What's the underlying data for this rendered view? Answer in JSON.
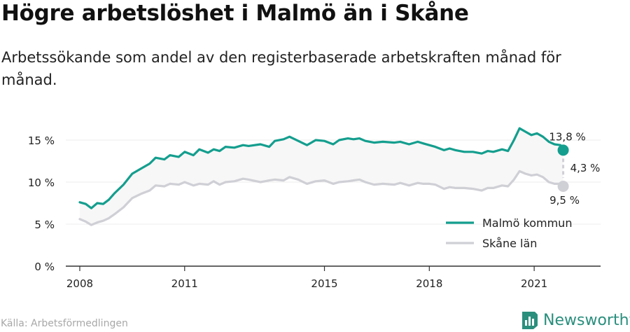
{
  "title": "Högre arbetslöshet i Malmö än i Skåne",
  "subtitle": "Arbetssökande som andel av den registerbaserade arbetskraften månad för månad.",
  "source": "Källa: Arbetsförmedlingen",
  "brand": "Newsworthy",
  "colors": {
    "malmo": "#149e8e",
    "skane": "#cfcfd6",
    "band": "#f7f7f7",
    "axis": "#333333",
    "brand": "#2a8f7d"
  },
  "chart_data": {
    "type": "line",
    "x_unit": "year",
    "xlim": [
      2007.6,
      2022.9
    ],
    "ylim": [
      0,
      17
    ],
    "y_ticks": [
      0,
      5,
      10,
      15
    ],
    "y_tick_labels": [
      "0 %",
      "5 %",
      "10 %",
      "15 %"
    ],
    "x_ticks": [
      2008,
      2011,
      2015,
      2018,
      2021
    ],
    "x_tick_labels": [
      "2008",
      "2011",
      "2015",
      "2018",
      "2021"
    ],
    "legend_position": "bottom-right",
    "series": [
      {
        "name": "Malmö kommun",
        "color": "#149e8e",
        "end_label": "13,8 %",
        "points": [
          [
            2008.0,
            7.6
          ],
          [
            2008.17,
            7.4
          ],
          [
            2008.33,
            6.9
          ],
          [
            2008.5,
            7.5
          ],
          [
            2008.67,
            7.4
          ],
          [
            2008.83,
            7.9
          ],
          [
            2009.0,
            8.7
          ],
          [
            2009.25,
            9.7
          ],
          [
            2009.5,
            11.0
          ],
          [
            2009.75,
            11.6
          ],
          [
            2010.0,
            12.2
          ],
          [
            2010.17,
            12.9
          ],
          [
            2010.42,
            12.7
          ],
          [
            2010.58,
            13.2
          ],
          [
            2010.83,
            13.0
          ],
          [
            2011.0,
            13.6
          ],
          [
            2011.25,
            13.2
          ],
          [
            2011.42,
            13.9
          ],
          [
            2011.67,
            13.5
          ],
          [
            2011.83,
            13.9
          ],
          [
            2012.0,
            13.7
          ],
          [
            2012.17,
            14.2
          ],
          [
            2012.42,
            14.1
          ],
          [
            2012.67,
            14.4
          ],
          [
            2012.83,
            14.3
          ],
          [
            2013.17,
            14.5
          ],
          [
            2013.42,
            14.2
          ],
          [
            2013.58,
            14.9
          ],
          [
            2013.83,
            15.1
          ],
          [
            2014.0,
            15.4
          ],
          [
            2014.25,
            14.9
          ],
          [
            2014.5,
            14.4
          ],
          [
            2014.75,
            15.0
          ],
          [
            2015.0,
            14.9
          ],
          [
            2015.25,
            14.5
          ],
          [
            2015.42,
            15.0
          ],
          [
            2015.67,
            15.2
          ],
          [
            2015.83,
            15.1
          ],
          [
            2016.0,
            15.2
          ],
          [
            2016.17,
            14.9
          ],
          [
            2016.42,
            14.7
          ],
          [
            2016.67,
            14.8
          ],
          [
            2017.0,
            14.7
          ],
          [
            2017.17,
            14.8
          ],
          [
            2017.42,
            14.5
          ],
          [
            2017.67,
            14.8
          ],
          [
            2017.83,
            14.6
          ],
          [
            2018.0,
            14.4
          ],
          [
            2018.17,
            14.2
          ],
          [
            2018.42,
            13.8
          ],
          [
            2018.58,
            14.0
          ],
          [
            2018.75,
            13.8
          ],
          [
            2019.0,
            13.6
          ],
          [
            2019.25,
            13.6
          ],
          [
            2019.5,
            13.4
          ],
          [
            2019.67,
            13.7
          ],
          [
            2019.83,
            13.6
          ],
          [
            2020.08,
            13.9
          ],
          [
            2020.25,
            13.7
          ],
          [
            2020.42,
            15.0
          ],
          [
            2020.58,
            16.4
          ],
          [
            2020.75,
            16.0
          ],
          [
            2020.92,
            15.6
          ],
          [
            2021.08,
            15.8
          ],
          [
            2021.25,
            15.4
          ],
          [
            2021.42,
            14.8
          ],
          [
            2021.58,
            14.5
          ],
          [
            2021.75,
            14.4
          ],
          [
            2021.83,
            13.8
          ]
        ]
      },
      {
        "name": "Skåne län",
        "color": "#cfcfd6",
        "end_label": "9,5 %",
        "points": [
          [
            2008.0,
            5.6
          ],
          [
            2008.17,
            5.3
          ],
          [
            2008.33,
            4.9
          ],
          [
            2008.5,
            5.2
          ],
          [
            2008.67,
            5.4
          ],
          [
            2008.83,
            5.7
          ],
          [
            2009.0,
            6.2
          ],
          [
            2009.25,
            7.0
          ],
          [
            2009.5,
            8.1
          ],
          [
            2009.75,
            8.6
          ],
          [
            2010.0,
            9.0
          ],
          [
            2010.17,
            9.6
          ],
          [
            2010.42,
            9.5
          ],
          [
            2010.58,
            9.8
          ],
          [
            2010.83,
            9.7
          ],
          [
            2011.0,
            10.0
          ],
          [
            2011.25,
            9.6
          ],
          [
            2011.42,
            9.8
          ],
          [
            2011.67,
            9.7
          ],
          [
            2011.83,
            10.1
          ],
          [
            2012.0,
            9.7
          ],
          [
            2012.17,
            10.0
          ],
          [
            2012.42,
            10.1
          ],
          [
            2012.67,
            10.4
          ],
          [
            2012.83,
            10.3
          ],
          [
            2013.17,
            10.0
          ],
          [
            2013.42,
            10.2
          ],
          [
            2013.58,
            10.3
          ],
          [
            2013.83,
            10.2
          ],
          [
            2014.0,
            10.6
          ],
          [
            2014.25,
            10.3
          ],
          [
            2014.5,
            9.8
          ],
          [
            2014.75,
            10.1
          ],
          [
            2015.0,
            10.2
          ],
          [
            2015.25,
            9.8
          ],
          [
            2015.42,
            10.0
          ],
          [
            2015.67,
            10.1
          ],
          [
            2015.83,
            10.2
          ],
          [
            2016.0,
            10.3
          ],
          [
            2016.17,
            10.0
          ],
          [
            2016.42,
            9.7
          ],
          [
            2016.67,
            9.8
          ],
          [
            2017.0,
            9.7
          ],
          [
            2017.17,
            9.9
          ],
          [
            2017.42,
            9.6
          ],
          [
            2017.67,
            9.9
          ],
          [
            2017.83,
            9.8
          ],
          [
            2018.0,
            9.8
          ],
          [
            2018.17,
            9.7
          ],
          [
            2018.42,
            9.2
          ],
          [
            2018.58,
            9.4
          ],
          [
            2018.75,
            9.3
          ],
          [
            2019.0,
            9.3
          ],
          [
            2019.25,
            9.2
          ],
          [
            2019.5,
            9.0
          ],
          [
            2019.67,
            9.3
          ],
          [
            2019.83,
            9.3
          ],
          [
            2020.08,
            9.6
          ],
          [
            2020.25,
            9.5
          ],
          [
            2020.42,
            10.3
          ],
          [
            2020.58,
            11.3
          ],
          [
            2020.75,
            11.0
          ],
          [
            2020.92,
            10.8
          ],
          [
            2021.08,
            10.9
          ],
          [
            2021.25,
            10.6
          ],
          [
            2021.42,
            10.0
          ],
          [
            2021.58,
            9.8
          ],
          [
            2021.75,
            9.8
          ],
          [
            2021.83,
            9.5
          ]
        ]
      }
    ],
    "difference_label": "4,3 %"
  }
}
